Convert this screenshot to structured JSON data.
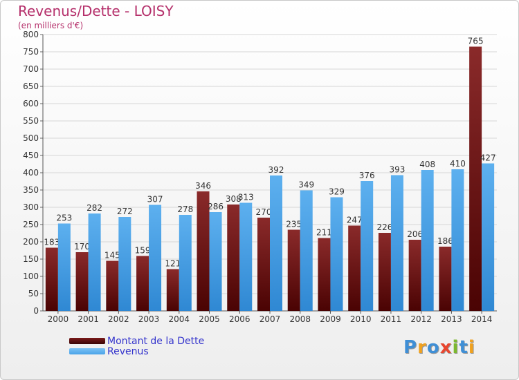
{
  "header": {
    "title": "Revenus/Dette - LOISY",
    "subtitle": "(en milliers d'€)"
  },
  "legend": {
    "dette_label": "Montant de la Dette",
    "revenus_label": "Revenus"
  },
  "logo": {
    "text": "Proxiti",
    "letters": [
      {
        "ch": "P",
        "color": "#3f8fd6"
      },
      {
        "ch": "r",
        "color": "#f0a11f"
      },
      {
        "ch": "o",
        "color": "#3f8fd6"
      },
      {
        "ch": "x",
        "color": "#e8462f"
      },
      {
        "ch": "i",
        "color": "#7cb82f"
      },
      {
        "ch": "t",
        "color": "#3f8fd6"
      },
      {
        "ch": "i",
        "color": "#f0a11f"
      }
    ]
  },
  "colors": {
    "dette": "#7a1a1a",
    "revenus": "#4aa3e8",
    "title": "#b5306b",
    "legend_text": "#3333cc"
  },
  "chart_data": {
    "type": "bar",
    "title": "Revenus/Dette - LOISY",
    "subtitle": "(en milliers d'€)",
    "categories": [
      "2000",
      "2001",
      "2002",
      "2003",
      "2004",
      "2005",
      "2006",
      "2007",
      "2008",
      "2009",
      "2010",
      "2011",
      "2012",
      "2013",
      "2014"
    ],
    "series": [
      {
        "name": "Montant de la Dette",
        "values": [
          183,
          170,
          145,
          159,
          121,
          346,
          308,
          270,
          235,
          211,
          247,
          226,
          206,
          186,
          765
        ]
      },
      {
        "name": "Revenus",
        "values": [
          253,
          282,
          272,
          307,
          278,
          286,
          313,
          392,
          349,
          329,
          376,
          393,
          408,
          410,
          427
        ]
      }
    ],
    "ylim": [
      0,
      800
    ],
    "yticks": [
      0,
      50,
      100,
      150,
      200,
      250,
      300,
      350,
      400,
      450,
      500,
      550,
      600,
      650,
      700,
      750,
      800
    ],
    "grid": true,
    "legend_position": "bottom-left"
  }
}
